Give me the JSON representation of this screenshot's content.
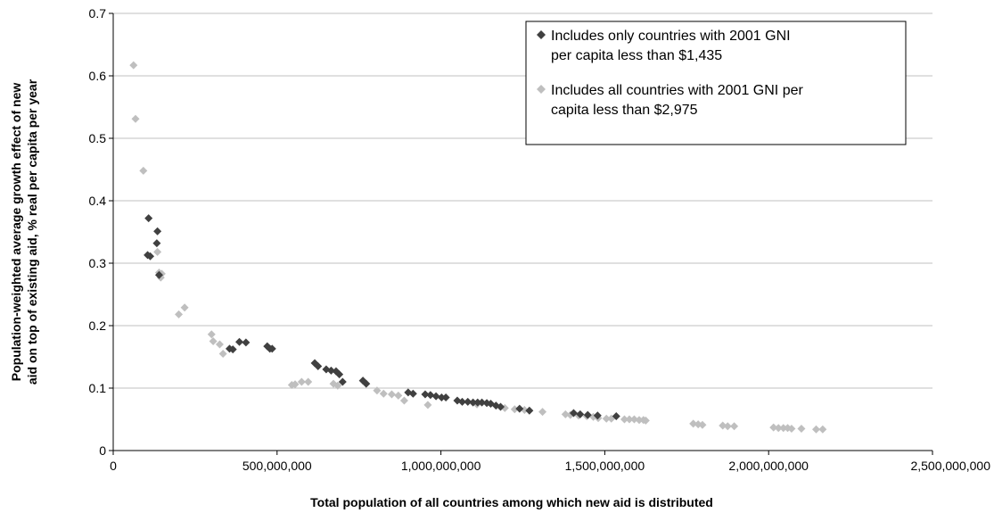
{
  "chart_data": {
    "type": "scatter",
    "title": "",
    "xlabel": "Total population of all countries among which new aid is distributed",
    "ylabel_lines": [
      "Population-weighted average growth effect of new",
      "aid on top of existing aid, % real per capita per year"
    ],
    "xlim": [
      0,
      2500000000
    ],
    "ylim": [
      0,
      0.7
    ],
    "x_ticks": [
      0,
      500000000,
      1000000000,
      1500000000,
      2000000000,
      2500000000
    ],
    "x_tick_labels": [
      "0",
      "500,000,000",
      "1,000,000,000",
      "1,500,000,000",
      "2,000,000,000",
      "2,500,000,000"
    ],
    "y_ticks": [
      0,
      0.1,
      0.2,
      0.3,
      0.4,
      0.5,
      0.6,
      0.7
    ],
    "y_tick_labels": [
      "0",
      "0.1",
      "0.2",
      "0.3",
      "0.4",
      "0.5",
      "0.6",
      "0.7"
    ],
    "grid": "horizontal",
    "legend_position": "top-right",
    "series": [
      {
        "name_lines": [
          "Includes only countries with 2001 GNI",
          "per capita less than $1,435"
        ],
        "color": "#404040",
        "points": [
          [
            108000000,
            0.372
          ],
          [
            105000000,
            0.313
          ],
          [
            113000000,
            0.311
          ],
          [
            135000000,
            0.351
          ],
          [
            133000000,
            0.332
          ],
          [
            140000000,
            0.281
          ],
          [
            355000000,
            0.163
          ],
          [
            365000000,
            0.162
          ],
          [
            385000000,
            0.174
          ],
          [
            405000000,
            0.173
          ],
          [
            470000000,
            0.167
          ],
          [
            478000000,
            0.163
          ],
          [
            485000000,
            0.163
          ],
          [
            615000000,
            0.14
          ],
          [
            625000000,
            0.135
          ],
          [
            650000000,
            0.13
          ],
          [
            665000000,
            0.128
          ],
          [
            680000000,
            0.127
          ],
          [
            690000000,
            0.122
          ],
          [
            700000000,
            0.11
          ],
          [
            762000000,
            0.112
          ],
          [
            772000000,
            0.107
          ],
          [
            900000000,
            0.093
          ],
          [
            915000000,
            0.091
          ],
          [
            952000000,
            0.09
          ],
          [
            968000000,
            0.089
          ],
          [
            985000000,
            0.087
          ],
          [
            1002000000,
            0.085
          ],
          [
            1015000000,
            0.085
          ],
          [
            1050000000,
            0.08
          ],
          [
            1065000000,
            0.078
          ],
          [
            1082000000,
            0.078
          ],
          [
            1098000000,
            0.077
          ],
          [
            1112000000,
            0.077
          ],
          [
            1125000000,
            0.077
          ],
          [
            1140000000,
            0.076
          ],
          [
            1152000000,
            0.075
          ],
          [
            1168000000,
            0.072
          ],
          [
            1182000000,
            0.07
          ],
          [
            1240000000,
            0.067
          ],
          [
            1270000000,
            0.064
          ],
          [
            1405000000,
            0.06
          ],
          [
            1425000000,
            0.058
          ],
          [
            1448000000,
            0.057
          ],
          [
            1478000000,
            0.056
          ],
          [
            1535000000,
            0.055
          ]
        ]
      },
      {
        "name_lines": [
          "Includes all countries with 2001 GNI per",
          "capita less than $2,975"
        ],
        "color": "#bfbfbf",
        "points": [
          [
            62000000,
            0.617
          ],
          [
            68000000,
            0.531
          ],
          [
            92000000,
            0.448
          ],
          [
            135000000,
            0.318
          ],
          [
            140000000,
            0.285
          ],
          [
            148000000,
            0.283
          ],
          [
            145000000,
            0.277
          ],
          [
            200000000,
            0.218
          ],
          [
            218000000,
            0.229
          ],
          [
            300000000,
            0.186
          ],
          [
            305000000,
            0.175
          ],
          [
            325000000,
            0.17
          ],
          [
            335000000,
            0.155
          ],
          [
            545000000,
            0.105
          ],
          [
            555000000,
            0.106
          ],
          [
            575000000,
            0.11
          ],
          [
            595000000,
            0.11
          ],
          [
            672000000,
            0.107
          ],
          [
            685000000,
            0.104
          ],
          [
            805000000,
            0.096
          ],
          [
            825000000,
            0.091
          ],
          [
            850000000,
            0.09
          ],
          [
            870000000,
            0.088
          ],
          [
            888000000,
            0.08
          ],
          [
            960000000,
            0.073
          ],
          [
            1110000000,
            0.074
          ],
          [
            1195000000,
            0.068
          ],
          [
            1225000000,
            0.066
          ],
          [
            1255000000,
            0.065
          ],
          [
            1310000000,
            0.062
          ],
          [
            1380000000,
            0.058
          ],
          [
            1395000000,
            0.057
          ],
          [
            1420000000,
            0.056
          ],
          [
            1445000000,
            0.055
          ],
          [
            1465000000,
            0.054
          ],
          [
            1480000000,
            0.052
          ],
          [
            1505000000,
            0.051
          ],
          [
            1520000000,
            0.051
          ],
          [
            1560000000,
            0.05
          ],
          [
            1575000000,
            0.05
          ],
          [
            1590000000,
            0.05
          ],
          [
            1605000000,
            0.049
          ],
          [
            1618000000,
            0.049
          ],
          [
            1625000000,
            0.048
          ],
          [
            1770000000,
            0.043
          ],
          [
            1785000000,
            0.042
          ],
          [
            1798000000,
            0.041
          ],
          [
            1860000000,
            0.04
          ],
          [
            1875000000,
            0.039
          ],
          [
            1895000000,
            0.039
          ],
          [
            2015000000,
            0.037
          ],
          [
            2030000000,
            0.036
          ],
          [
            2045000000,
            0.036
          ],
          [
            2058000000,
            0.036
          ],
          [
            2070000000,
            0.035
          ],
          [
            2100000000,
            0.035
          ],
          [
            2145000000,
            0.034
          ],
          [
            2165000000,
            0.034
          ]
        ]
      }
    ]
  }
}
